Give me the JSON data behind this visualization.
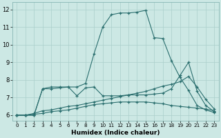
{
  "xlabel": "Humidex (Indice chaleur)",
  "bg_color": "#cce8e4",
  "grid_color": "#aacfcb",
  "line_color": "#2a6e6e",
  "xlim": [
    -0.5,
    23.5
  ],
  "ylim": [
    5.7,
    12.4
  ],
  "xticks": [
    0,
    1,
    2,
    3,
    4,
    5,
    6,
    7,
    8,
    9,
    10,
    11,
    12,
    13,
    14,
    15,
    16,
    17,
    18,
    19,
    20,
    21,
    22,
    23
  ],
  "yticks": [
    6,
    7,
    8,
    9,
    10,
    11,
    12
  ],
  "line1_y": [
    6.0,
    6.0,
    6.0,
    7.5,
    7.6,
    7.6,
    7.6,
    7.6,
    7.8,
    9.5,
    11.0,
    11.7,
    11.8,
    11.8,
    11.85,
    11.95,
    10.4,
    10.35,
    9.1,
    8.15,
    7.4,
    6.55,
    6.3,
    6.15
  ],
  "line2_y": [
    6.0,
    6.0,
    6.0,
    7.5,
    7.5,
    7.55,
    7.6,
    7.1,
    7.55,
    7.6,
    7.1,
    7.1,
    7.1,
    7.15,
    7.15,
    7.15,
    7.2,
    7.25,
    7.5,
    8.25,
    9.0,
    7.35,
    6.55,
    6.2
  ],
  "line3_y": [
    6.0,
    6.0,
    6.1,
    6.25,
    6.3,
    6.4,
    6.5,
    6.55,
    6.65,
    6.75,
    6.85,
    6.95,
    7.05,
    7.15,
    7.25,
    7.35,
    7.5,
    7.65,
    7.75,
    7.9,
    8.2,
    7.6,
    6.9,
    6.35
  ],
  "line4_y": [
    6.0,
    6.0,
    6.05,
    6.1,
    6.2,
    6.25,
    6.3,
    6.4,
    6.5,
    6.6,
    6.65,
    6.7,
    6.75,
    6.75,
    6.75,
    6.75,
    6.7,
    6.65,
    6.55,
    6.5,
    6.45,
    6.4,
    6.35,
    6.25
  ]
}
